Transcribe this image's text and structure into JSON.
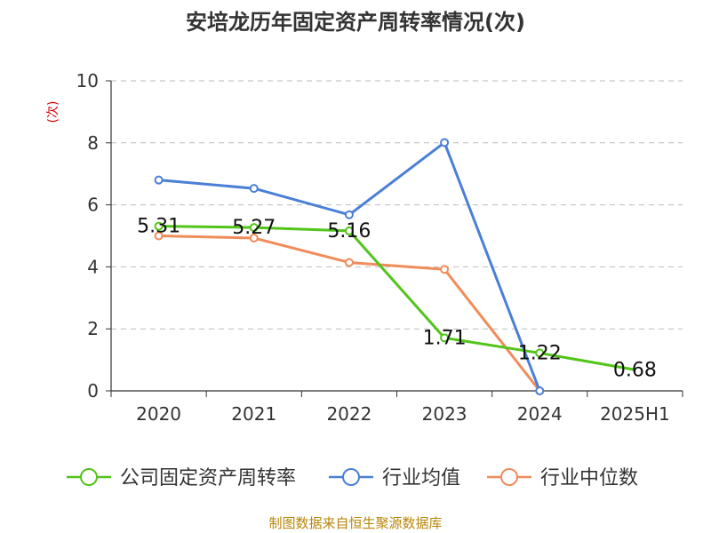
{
  "chart_data": {
    "type": "line",
    "title": "安培龙历年固定资产周转率情况(次)",
    "ylabel": "(次)",
    "categories": [
      "2020",
      "2021",
      "2022",
      "2023",
      "2024",
      "2025H1"
    ],
    "yticks": [
      "0",
      "2",
      "4",
      "6",
      "8",
      "10"
    ],
    "ylim": [
      0,
      10
    ],
    "grid": "horizontal-dashed",
    "legend_position": "bottom",
    "series": [
      {
        "name": "公司固定资产周转率",
        "color": "#52c41a",
        "values": [
          5.31,
          5.27,
          5.16,
          1.71,
          1.22,
          0.68
        ],
        "labels": [
          "5.31",
          "5.27",
          "5.16",
          "1.71",
          "1.22",
          "0.68"
        ]
      },
      {
        "name": "行业均值",
        "color": "#4a7fd8",
        "values": [
          6.8,
          6.53,
          5.68,
          8.01,
          0.0,
          null
        ]
      },
      {
        "name": "行业中位数",
        "color": "#f08c5a",
        "values": [
          5.0,
          4.93,
          4.14,
          3.92,
          0.0,
          null
        ]
      }
    ]
  },
  "source": "制图数据来自恒生聚源数据库"
}
